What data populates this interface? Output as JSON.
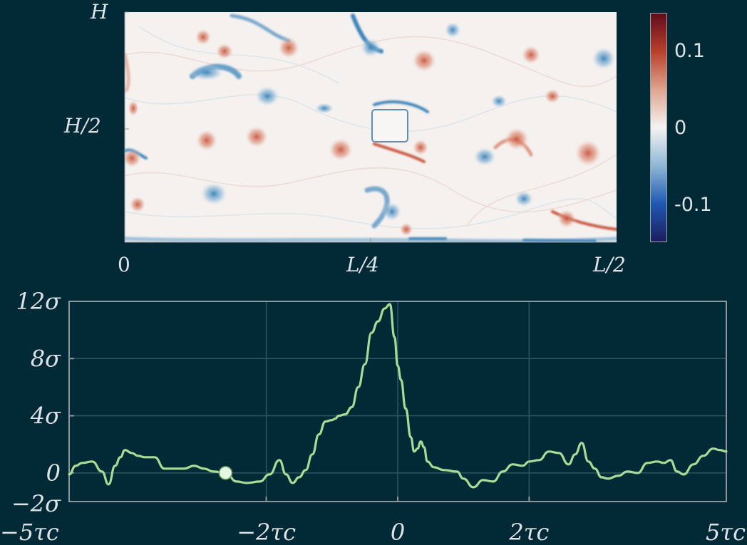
{
  "field_plot": {
    "y_ticks": [
      "H",
      "H/2"
    ],
    "x_ticks": [
      "0",
      "L/4",
      "L/2"
    ],
    "colorbar": {
      "ticks": [
        "0.1",
        "0",
        "-0.1"
      ],
      "range": [
        -0.15,
        0.15
      ],
      "colors": [
        "#1c1d5e",
        "#1f59b3",
        "#8fb8d6",
        "#f5f3f2",
        "#e0a48f",
        "#b8402b",
        "#620b1c"
      ]
    },
    "colors": {
      "positive": "#c9573f",
      "negative": "#3a82b8",
      "background": "#f5f1ef"
    }
  },
  "chart_data": {
    "type": "line",
    "title": "",
    "xlabel": "",
    "ylabel": "",
    "xlim": [
      -5,
      5
    ],
    "ylim": [
      -2,
      12
    ],
    "x_ticks": [
      {
        "value": -5,
        "label": "−5τc"
      },
      {
        "value": -2,
        "label": "−2τc"
      },
      {
        "value": 0,
        "label": "0"
      },
      {
        "value": 2,
        "label": "2τc"
      },
      {
        "value": 5,
        "label": "5τc"
      }
    ],
    "y_ticks": [
      {
        "value": 12,
        "label": "12σ"
      },
      {
        "value": 8,
        "label": "8σ"
      },
      {
        "value": 4,
        "label": "4σ"
      },
      {
        "value": 0,
        "label": "0"
      },
      {
        "value": -2,
        "label": "−2σ"
      }
    ],
    "grid": true,
    "line_color": "#a6dc96",
    "marker": {
      "x": -2.62,
      "y": 0.0,
      "color": "#e4f6e0"
    },
    "series": [
      {
        "x": [
          -5.0,
          -4.9,
          -4.8,
          -4.65,
          -4.5,
          -4.4,
          -4.3,
          -4.22,
          -4.15,
          -4.05,
          -3.95,
          -3.85,
          -3.7,
          -3.55,
          -3.4,
          -3.25,
          -3.1,
          -2.95,
          -2.8,
          -2.62,
          -2.45,
          -2.3,
          -2.1,
          -1.95,
          -1.8,
          -1.7,
          -1.6,
          -1.5,
          -1.4,
          -1.3,
          -1.2,
          -1.1,
          -1.0,
          -0.95,
          -0.9,
          -0.8,
          -0.7,
          -0.6,
          -0.5,
          -0.4,
          -0.3,
          -0.2,
          -0.12,
          -0.05,
          0.0,
          0.05,
          0.12,
          0.2,
          0.25,
          0.3,
          0.35,
          0.4,
          0.45,
          0.55,
          0.7,
          0.9,
          1.0,
          1.15,
          1.3,
          1.45,
          1.6,
          1.75,
          1.9,
          2.0,
          2.15,
          2.3,
          2.45,
          2.6,
          2.7,
          2.8,
          2.9,
          3.0,
          3.1,
          3.2,
          3.35,
          3.5,
          3.65,
          3.8,
          3.95,
          4.05,
          4.15,
          4.25,
          4.35,
          4.5,
          4.65,
          4.8,
          4.9,
          5.0
        ],
        "values": [
          -0.1,
          0.5,
          0.7,
          0.8,
          0.1,
          -0.8,
          0.5,
          1.1,
          1.6,
          1.4,
          1.2,
          1.1,
          1.1,
          0.3,
          0.3,
          0.3,
          0.5,
          0.3,
          0.1,
          0.0,
          -0.6,
          -0.7,
          -0.6,
          -0.1,
          0.9,
          -0.1,
          -0.7,
          -0.3,
          0.2,
          1.3,
          2.7,
          3.6,
          3.7,
          3.8,
          4.0,
          4.1,
          4.6,
          6.0,
          7.6,
          9.8,
          10.6,
          11.5,
          11.8,
          9.5,
          7.5,
          6.5,
          4.5,
          2.5,
          1.5,
          1.7,
          2.2,
          1.8,
          0.8,
          0.4,
          0.2,
          0.1,
          -0.4,
          -1.0,
          -0.5,
          -0.6,
          0.1,
          0.6,
          0.5,
          0.8,
          0.9,
          1.5,
          1.4,
          0.6,
          1.3,
          2.1,
          0.8,
          0.3,
          -0.3,
          -0.4,
          -0.2,
          0.1,
          0.0,
          0.7,
          0.8,
          0.7,
          0.9,
          0.1,
          -0.1,
          0.6,
          1.2,
          1.7,
          1.6,
          1.5
        ]
      }
    ]
  }
}
